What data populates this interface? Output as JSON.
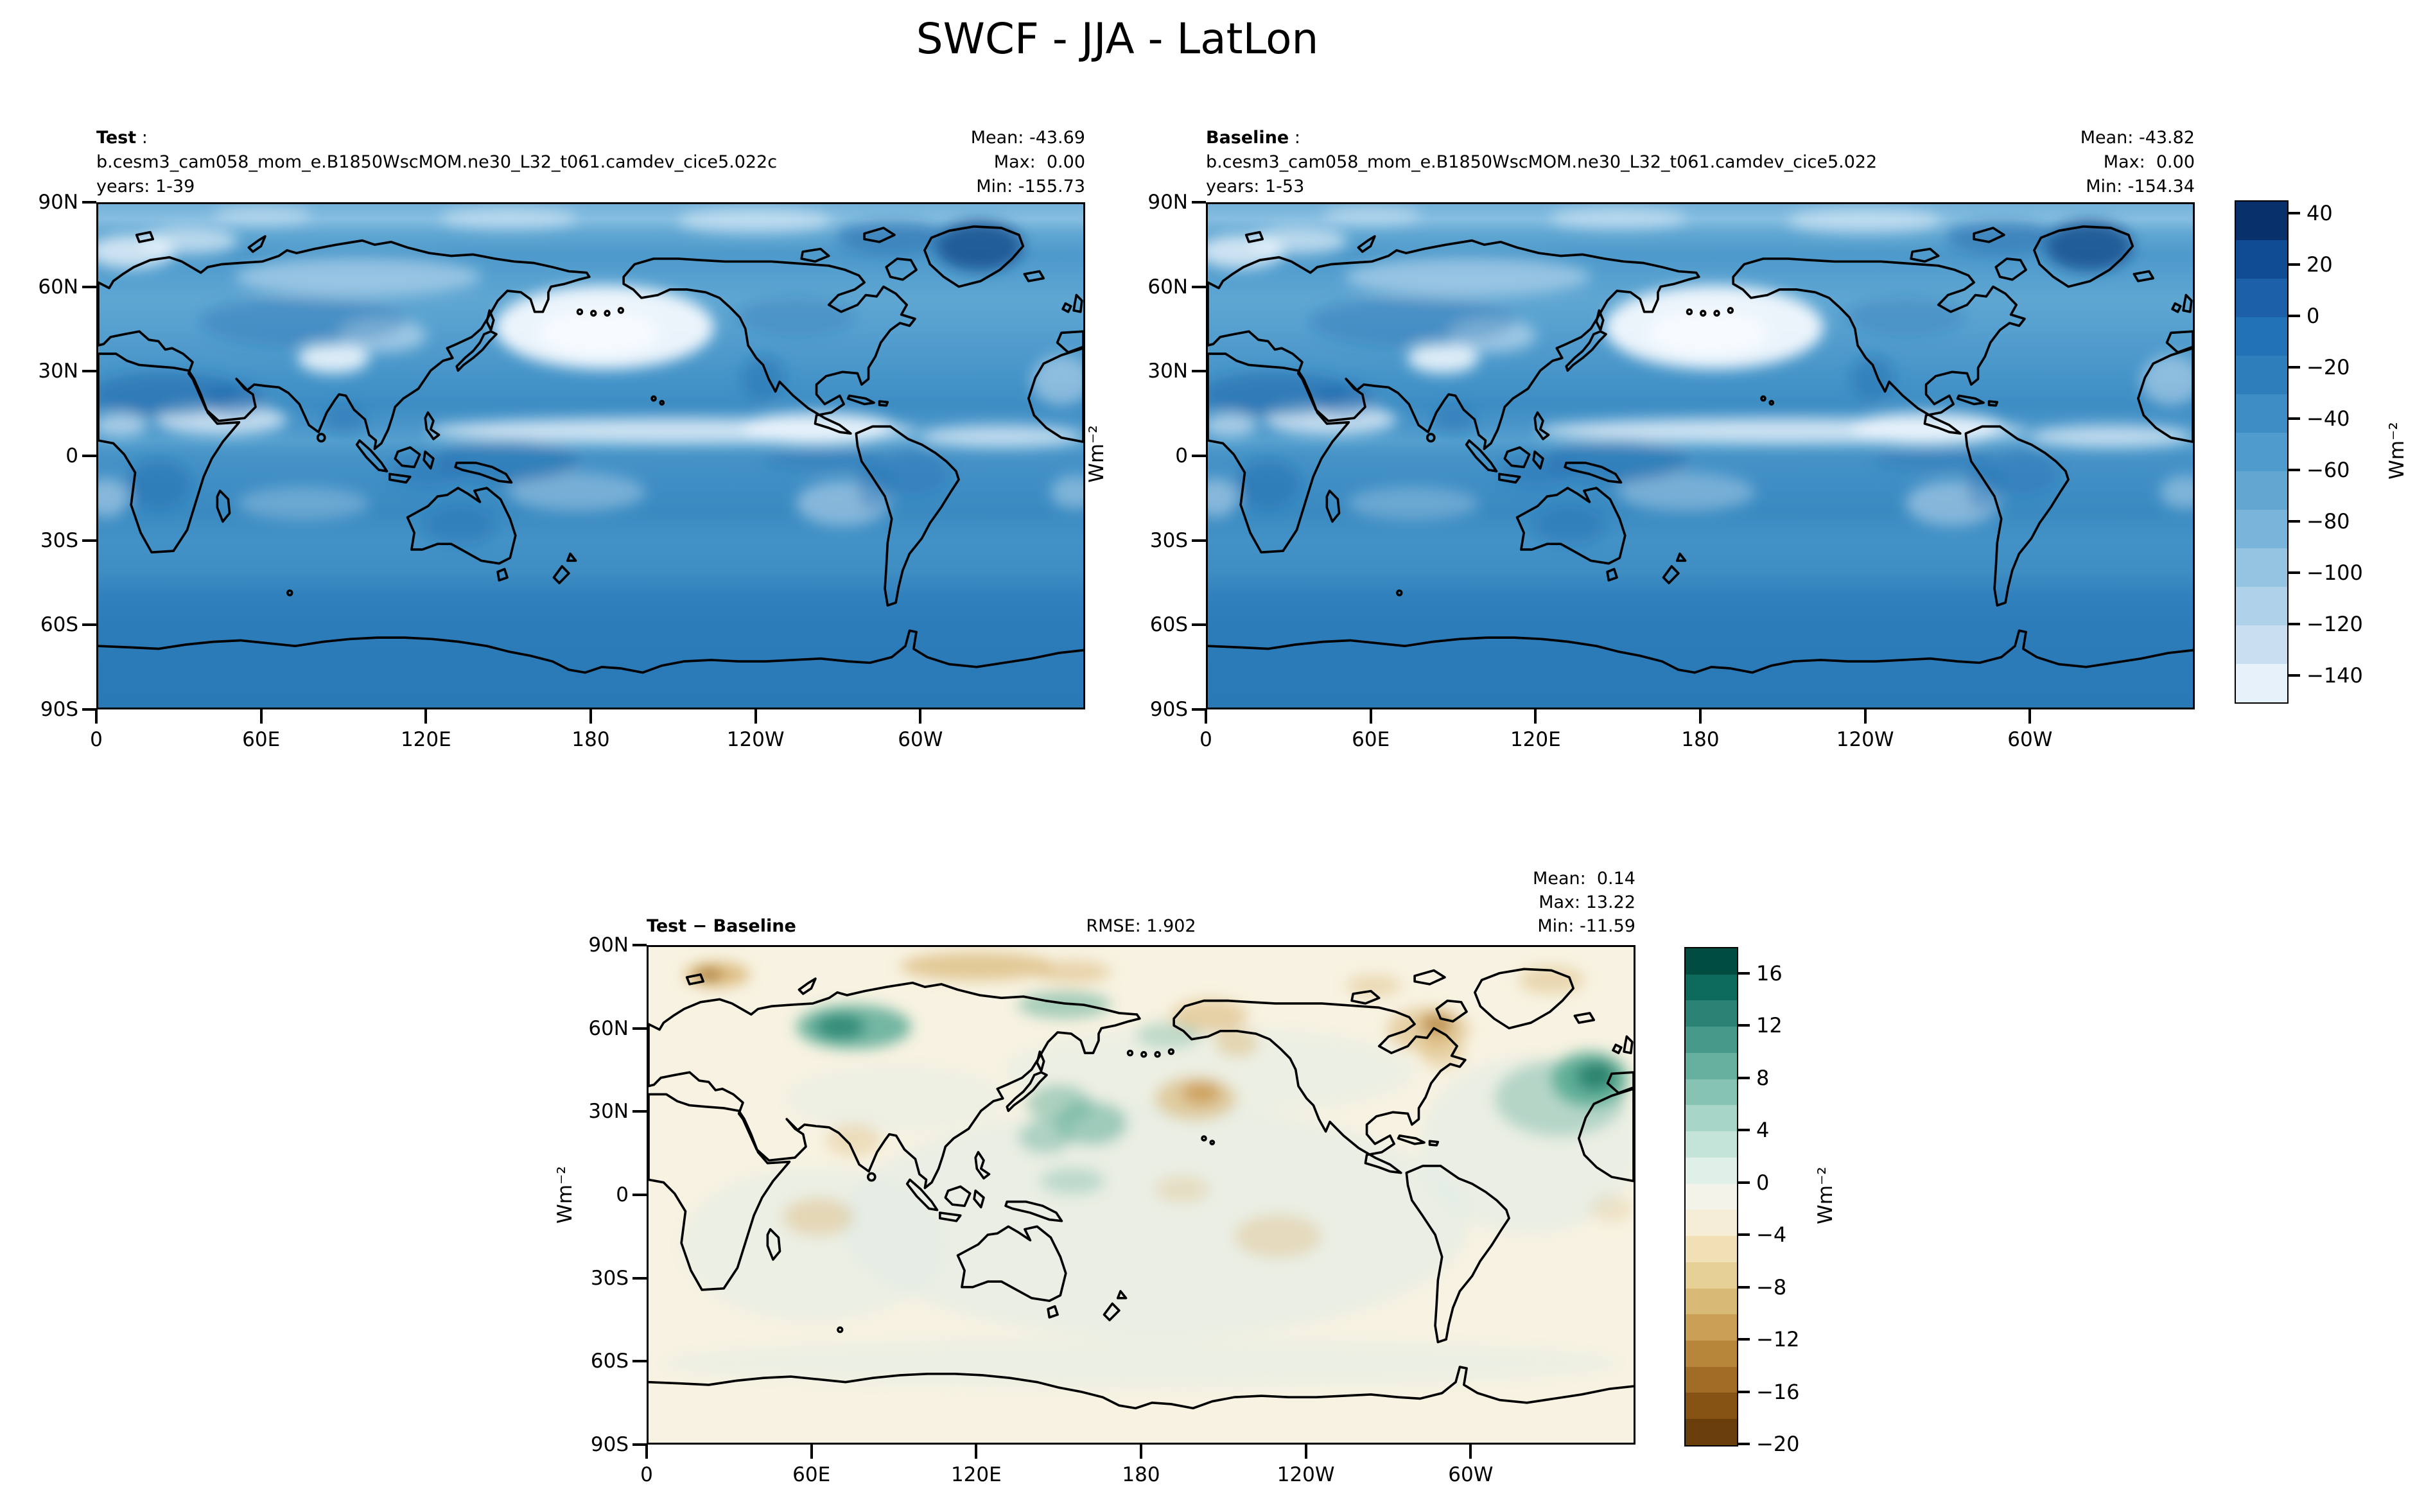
{
  "title": "SWCF - JJA - LatLon",
  "panels": {
    "test": {
      "name": "Test",
      "colon": " :",
      "run": "b.cesm3_cam058_mom_e.B1850WscMOM.ne30_L32_t061.camdev_cice5.022c",
      "years": "years: 1-39",
      "mean": "Mean: -43.69",
      "max": "Max:  0.00",
      "min": "Min: -155.73"
    },
    "baseline": {
      "name": "Baseline",
      "colon": " :",
      "run": "b.cesm3_cam058_mom_e.B1850WscMOM.ne30_L32_t061.camdev_cice5.022",
      "years": "years: 1-53",
      "mean": "Mean: -43.82",
      "max": "Max:  0.00",
      "min": "Min: -154.34"
    },
    "diff": {
      "name": "Test − Baseline",
      "rmse": "RMSE: 1.902",
      "mean": "Mean:  0.14",
      "max": "Max: 13.22",
      "min": "Min: -11.59"
    }
  },
  "axes": {
    "lat": [
      "90N",
      "60N",
      "30N",
      "0",
      "30S",
      "60S",
      "90S"
    ],
    "lon": [
      "0",
      "60E",
      "120E",
      "180",
      "120W",
      "60W"
    ],
    "units": "Wm⁻²"
  },
  "colorbars": {
    "main": {
      "unit": "Wm⁻²",
      "vmax": 45,
      "vmin": -150,
      "ticks": [
        {
          "v": 40,
          "t": "40"
        },
        {
          "v": 20,
          "t": "20"
        },
        {
          "v": 0,
          "t": "0"
        },
        {
          "v": -20,
          "t": "−20"
        },
        {
          "v": -40,
          "t": "−40"
        },
        {
          "v": -60,
          "t": "−60"
        },
        {
          "v": -80,
          "t": "−80"
        },
        {
          "v": -100,
          "t": "−100"
        },
        {
          "v": -120,
          "t": "−120"
        },
        {
          "v": -140,
          "t": "−140"
        }
      ],
      "segments": [
        "#08306b",
        "#0f4c94",
        "#1b60a8",
        "#2272b6",
        "#2e7ebc",
        "#3d8dc4",
        "#4f9bcd",
        "#61a7d2",
        "#79b5da",
        "#94c4e1",
        "#afd1ea",
        "#cadef2",
        "#e7f1fa"
      ]
    },
    "diff": {
      "unit": "Wm⁻²",
      "vmax": 18,
      "vmin": -20,
      "ticks": [
        {
          "v": 16,
          "t": "16"
        },
        {
          "v": 12,
          "t": "12"
        },
        {
          "v": 8,
          "t": "8"
        },
        {
          "v": 4,
          "t": "4"
        },
        {
          "v": 0,
          "t": "0"
        },
        {
          "v": -4,
          "t": "−4"
        },
        {
          "v": -8,
          "t": "−8"
        },
        {
          "v": -12,
          "t": "−12"
        },
        {
          "v": -16,
          "t": "−16"
        },
        {
          "v": -20,
          "t": "−20"
        }
      ],
      "segments": [
        "#004c41",
        "#0c6b5d",
        "#2b8376",
        "#47998a",
        "#67af9f",
        "#87c3b3",
        "#a7d5c7",
        "#c5e4d9",
        "#def0e8",
        "#f3f3ea",
        "#f6edd6",
        "#f1e0b5",
        "#e7d096",
        "#d9b976",
        "#c9a055",
        "#b8863a",
        "#a06c26",
        "#865315",
        "#693e0a"
      ]
    }
  },
  "chart_data": [
    {
      "type": "heatmap",
      "title": "Test",
      "variable": "SWCF",
      "season": "JJA",
      "projection": "LatLon",
      "run": "b.cesm3_cam058_mom_e.B1850WscMOM.ne30_L32_t061.camdev_cice5.022c",
      "years": "1-39",
      "stats": {
        "mean": -43.69,
        "max": 0.0,
        "min": -155.73
      },
      "units": "Wm-2",
      "colormap": "Blues (dark blue = high/positive SWCF, white = strongly negative)",
      "colorbar_ticks": [
        40,
        20,
        0,
        -20,
        -40,
        -60,
        -80,
        -100,
        -120,
        -140
      ],
      "colorbar_range": [
        45,
        -150
      ],
      "x_ticks": [
        "0",
        "60E",
        "120E",
        "180",
        "120W",
        "60W"
      ],
      "y_ticks": [
        "90N",
        "60N",
        "30N",
        "0",
        "30S",
        "60S",
        "90S"
      ],
      "xlim": [
        0,
        360
      ],
      "ylim": [
        -90,
        90
      ],
      "grid": false,
      "notes": "Global filled-contour map; strong negative (white) band over North Pacific ~45N and ITCZ ~5-10N; dark navy over Greenland; uniform mid-blue over Southern Ocean/Antarctica"
    },
    {
      "type": "heatmap",
      "title": "Baseline",
      "variable": "SWCF",
      "season": "JJA",
      "projection": "LatLon",
      "run": "b.cesm3_cam058_mom_e.B1850WscMOM.ne30_L32_t061.camdev_cice5.022",
      "years": "1-53",
      "stats": {
        "mean": -43.82,
        "max": 0.0,
        "min": -154.34
      },
      "units": "Wm-2",
      "colormap": "Blues (shared colorbar with Test panel)",
      "colorbar_ticks": [
        40,
        20,
        0,
        -20,
        -40,
        -60,
        -80,
        -100,
        -120,
        -140
      ],
      "colorbar_range": [
        45,
        -150
      ],
      "x_ticks": [
        "0",
        "60E",
        "120E",
        "180",
        "120W",
        "60W"
      ],
      "y_ticks": [
        "90N",
        "60N",
        "30N",
        "0",
        "30S",
        "60S",
        "90S"
      ],
      "xlim": [
        0,
        360
      ],
      "ylim": [
        -90,
        90
      ],
      "grid": false,
      "notes": "Visually nearly identical to Test panel"
    },
    {
      "type": "heatmap",
      "title": "Test − Baseline",
      "variable": "SWCF difference",
      "season": "JJA",
      "projection": "LatLon",
      "stats": {
        "mean": 0.14,
        "max": 13.22,
        "min": -11.59,
        "rmse": 1.902
      },
      "units": "Wm-2",
      "colormap": "BrBG-like (teal/green = positive, brown/tan = negative, cream near zero)",
      "colorbar_ticks": [
        16,
        12,
        8,
        4,
        0,
        -4,
        -8,
        -12,
        -16,
        -20
      ],
      "colorbar_range": [
        18,
        -20
      ],
      "x_ticks": [
        "0",
        "60E",
        "120E",
        "180",
        "120W",
        "60W"
      ],
      "y_ticks": [
        "90N",
        "60N",
        "30N",
        "0",
        "30S",
        "60S",
        "90S"
      ],
      "xlim": [
        0,
        360
      ],
      "ylim": [
        -90,
        90
      ],
      "grid": false,
      "notes": "Mostly near-zero cream/pale-teal field; strong teal anomalies over central Siberia ~60N and North Atlantic ~40N; tan/brown anomalies over Barents Arctic, Alaska, central North Pacific ~35N and NE Canada"
    }
  ]
}
